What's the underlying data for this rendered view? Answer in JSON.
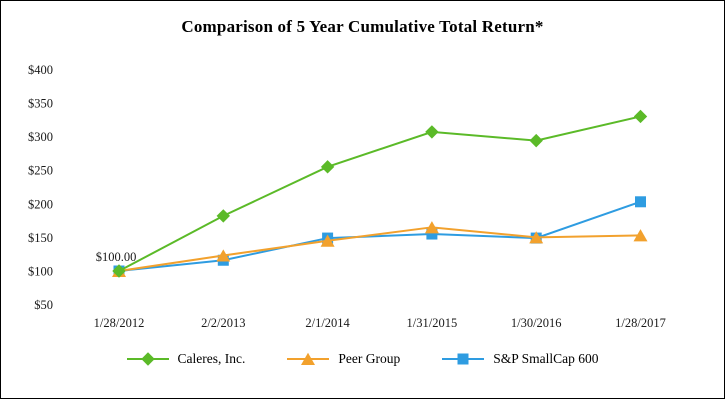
{
  "chart_data": {
    "type": "line",
    "title": "Comparison of 5 Year Cumulative Total Return*",
    "categories": [
      "1/28/2012",
      "2/2/2013",
      "2/1/2014",
      "1/31/2015",
      "1/30/2016",
      "1/28/2017"
    ],
    "series": [
      {
        "name": "Caleres, Inc.",
        "color": "#5BBA28",
        "marker": "diamond",
        "values": [
          100,
          182,
          255,
          307,
          294,
          330
        ]
      },
      {
        "name": "Peer Group",
        "color": "#F2A12D",
        "marker": "triangle",
        "values": [
          100,
          123,
          145,
          165,
          150,
          153
        ]
      },
      {
        "name": "S&P SmallCap 600",
        "color": "#2E9CE1",
        "marker": "square",
        "values": [
          100,
          116,
          149,
          155,
          149,
          203
        ]
      }
    ],
    "y_ticks": [
      400,
      350,
      300,
      250,
      200,
      150,
      100,
      50
    ],
    "y_tick_prefix": "$",
    "ylim": [
      50,
      400
    ],
    "grid": false,
    "axis_lines": false,
    "legend_position": "bottom",
    "annotation": {
      "text": "$100.00",
      "series_index": 0,
      "point_index": 0
    }
  }
}
